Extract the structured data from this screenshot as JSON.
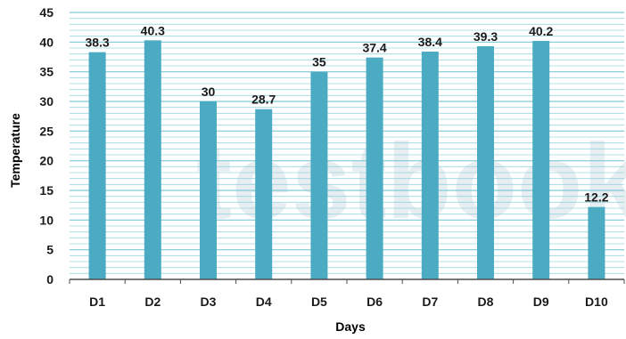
{
  "chart_data": {
    "type": "bar",
    "categories": [
      "D1",
      "D2",
      "D3",
      "D4",
      "D5",
      "D6",
      "D7",
      "D8",
      "D9",
      "D10"
    ],
    "values": [
      38.3,
      40.3,
      30,
      28.7,
      35,
      37.4,
      38.4,
      39.3,
      40.2,
      12.2
    ],
    "data_labels": [
      "38.3",
      "40.3",
      "30",
      "28.7",
      "35",
      "37.4",
      "38.4",
      "39.3",
      "40.2",
      "12.2"
    ],
    "y_ticks": [
      "0",
      "5",
      "10",
      "15",
      "20",
      "25",
      "30",
      "35",
      "40",
      "45"
    ],
    "xlabel": "Days",
    "ylabel": "Temperature",
    "ylim": [
      0,
      45
    ],
    "minor_grid_step": 1,
    "grid": true,
    "bar_color": "#4aabc3",
    "grid_color": "#7fc9d6",
    "watermark": "testbook"
  }
}
